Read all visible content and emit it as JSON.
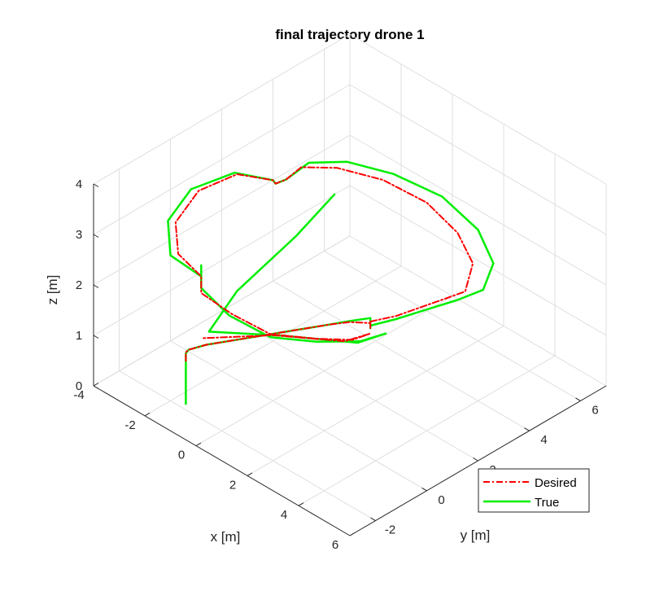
{
  "chart_data": {
    "type": "line3d",
    "title": "final trajectory drone 1",
    "xlabel": "x [m]",
    "ylabel": "y [m]",
    "zlabel": "z [m]",
    "xlim": [
      -4,
      6
    ],
    "ylim": [
      -3,
      7
    ],
    "zlim": [
      0,
      4
    ],
    "xticks": [
      -4,
      -2,
      0,
      2,
      4,
      6
    ],
    "yticks": [
      -2,
      0,
      2,
      4,
      6
    ],
    "zticks": [
      0,
      1,
      2,
      3,
      4
    ],
    "grid": true,
    "legend": {
      "placement": "bottom-right",
      "entries": [
        "Desired",
        "True"
      ]
    },
    "series": [
      {
        "name": "Desired",
        "color": "#ff0000",
        "style": "dash-dot",
        "points": [
          [
            -1.6,
            -1.8,
            0.85
          ],
          [
            -1.6,
            -1.8,
            1.02
          ],
          [
            -1.55,
            -1.75,
            1.07
          ],
          [
            -1.2,
            -1.4,
            1.17
          ],
          [
            -0.6,
            -0.8,
            1.27
          ],
          [
            0.0,
            -0.2,
            1.37
          ],
          [
            0.6,
            0.4,
            1.47
          ],
          [
            1.2,
            1.0,
            1.57
          ],
          [
            1.6,
            1.4,
            1.62
          ],
          [
            2.0,
            1.8,
            1.6
          ],
          [
            2.0,
            1.8,
            1.5
          ],
          [
            2.0,
            1.8,
            1.63
          ],
          [
            2.4,
            2.4,
            1.68
          ],
          [
            2.8,
            3.0,
            1.8
          ],
          [
            3.2,
            3.6,
            1.92
          ],
          [
            3.5,
            4.0,
            2.02
          ],
          [
            3.1,
            4.7,
            2.25
          ],
          [
            2.2,
            5.0,
            2.5
          ],
          [
            1.1,
            4.9,
            2.8
          ],
          [
            0.0,
            4.3,
            3.1
          ],
          [
            -0.8,
            3.3,
            3.4
          ],
          [
            -1.1,
            2.2,
            3.65
          ],
          [
            -0.9,
            1.4,
            3.7
          ],
          [
            -1.1,
            1.2,
            3.62
          ],
          [
            -1.3,
            1.3,
            3.6
          ],
          [
            -2.2,
            0.8,
            3.6
          ],
          [
            -2.6,
            -0.3,
            3.48
          ],
          [
            -2.3,
            -1.5,
            3.3
          ],
          [
            -1.5,
            -2.2,
            3.12
          ],
          [
            -0.5,
            -2.3,
            3.0
          ],
          [
            -0.45,
            -2.35,
            2.85
          ],
          [
            -0.45,
            -2.35,
            2.7
          ],
          [
            0.6,
            -2.2,
            2.55
          ],
          [
            1.6,
            -1.7,
            2.3
          ],
          [
            2.4,
            -0.7,
            2.15
          ],
          [
            2.8,
            0.3,
            1.95
          ],
          [
            2.6,
            1.2,
            1.75
          ],
          [
            1.6,
            1.2,
            1.3
          ],
          [
            0.0,
            0.0,
            1.3
          ],
          [
            -1.3,
            -1.5,
            1.3
          ]
        ]
      },
      {
        "name": "True",
        "color": "#00ee00",
        "style": "solid",
        "points": [
          [
            -1.6,
            -1.8,
            0.0
          ],
          [
            -1.6,
            -1.8,
            1.0
          ],
          [
            -1.55,
            -1.75,
            1.07
          ],
          [
            -1.2,
            -1.4,
            1.17
          ],
          [
            -0.6,
            -0.8,
            1.27
          ],
          [
            0.0,
            -0.2,
            1.37
          ],
          [
            0.6,
            0.4,
            1.47
          ],
          [
            1.2,
            1.0,
            1.57
          ],
          [
            1.6,
            1.4,
            1.64
          ],
          [
            2.0,
            1.8,
            1.7
          ],
          [
            2.0,
            1.8,
            1.5
          ],
          [
            2.0,
            1.8,
            1.55
          ],
          [
            2.4,
            2.4,
            1.62
          ],
          [
            2.9,
            3.1,
            1.75
          ],
          [
            3.4,
            3.8,
            1.88
          ],
          [
            3.8,
            4.4,
            2.02
          ],
          [
            3.5,
            5.1,
            2.25
          ],
          [
            2.5,
            5.5,
            2.5
          ],
          [
            1.2,
            5.4,
            2.8
          ],
          [
            0.0,
            4.7,
            3.1
          ],
          [
            -0.8,
            3.7,
            3.4
          ],
          [
            -1.1,
            2.5,
            3.65
          ],
          [
            -0.9,
            1.4,
            3.7
          ],
          [
            -1.1,
            1.2,
            3.62
          ],
          [
            -1.3,
            1.3,
            3.6
          ],
          [
            -2.3,
            0.8,
            3.6
          ],
          [
            -2.8,
            -0.4,
            3.48
          ],
          [
            -2.5,
            -1.6,
            3.3
          ],
          [
            -1.6,
            -2.4,
            3.12
          ],
          [
            -0.5,
            -2.3,
            3.0
          ],
          [
            -0.45,
            -2.35,
            3.25
          ],
          [
            -0.45,
            -2.35,
            2.8
          ],
          [
            0.6,
            -2.3,
            2.55
          ],
          [
            1.7,
            -1.8,
            2.3
          ],
          [
            2.5,
            -0.8,
            2.15
          ],
          [
            3.0,
            0.4,
            1.95
          ],
          [
            2.9,
            1.5,
            1.75
          ],
          [
            1.9,
            1.4,
            1.3
          ],
          [
            0.3,
            0.1,
            1.35
          ],
          [
            -1.2,
            -1.3,
            1.4
          ],
          [
            -1.0,
            -0.4,
            2.0
          ],
          [
            -0.5,
            1.4,
            2.7
          ],
          [
            -0.3,
            2.7,
            3.2
          ]
        ]
      }
    ]
  }
}
